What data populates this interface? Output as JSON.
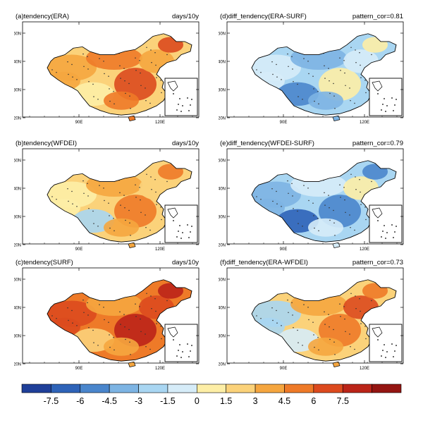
{
  "panels": [
    {
      "id": "a",
      "title": "(a)tendency(ERA)",
      "right": "days/10y",
      "theme": "warm",
      "lat_labels": [
        "50N",
        "40N",
        "30N",
        "20N"
      ],
      "lon_labels": [
        "90E",
        "120E"
      ]
    },
    {
      "id": "d",
      "title": "(d)diff_tendency(ERA-SURF)",
      "right": "pattern_cor=0.81",
      "theme": "cool",
      "lat_labels": [
        "50N",
        "40N",
        "30N",
        "20N"
      ],
      "lon_labels": [
        "90E",
        "120E"
      ]
    },
    {
      "id": "b",
      "title": "(b)tendency(WFDEI)",
      "right": "days/10y",
      "theme": "warm2",
      "lat_labels": [
        "50N",
        "40N",
        "30N",
        "20N"
      ],
      "lon_labels": [
        "90E",
        "120E"
      ]
    },
    {
      "id": "e",
      "title": "(e)diff_tendency(WFDEI-SURF)",
      "right": "pattern_cor=0.79",
      "theme": "cool2",
      "lat_labels": [
        "50N",
        "40N",
        "30N",
        "20N"
      ],
      "lon_labels": [
        "90E",
        "120E"
      ]
    },
    {
      "id": "c",
      "title": "(c)tendency(SURF)",
      "right": "days/10y",
      "theme": "hot",
      "lat_labels": [
        "50N",
        "40N",
        "30N",
        "20N"
      ],
      "lon_labels": [
        "90E",
        "120E"
      ]
    },
    {
      "id": "f",
      "title": "(f)diff_tendency(ERA-WFDEI)",
      "right": "pattern_cor=0.73",
      "theme": "mixed",
      "lat_labels": [
        "50N",
        "40N",
        "30N",
        "20N"
      ],
      "lon_labels": [
        "90E",
        "120E"
      ]
    }
  ],
  "colorbar": {
    "colors": [
      "#1f3f99",
      "#2e63b8",
      "#4a86cc",
      "#7db4e3",
      "#a9d6f2",
      "#d6ecf8",
      "#fdeea6",
      "#fbd27a",
      "#f5a63f",
      "#ee7a28",
      "#dc4a1e",
      "#bb2418",
      "#941512"
    ],
    "labels": [
      "-7.5",
      "-6",
      "-4.5",
      "-3",
      "-1.5",
      "0",
      "1.5",
      "3",
      "4.5",
      "6",
      "7.5"
    ]
  }
}
